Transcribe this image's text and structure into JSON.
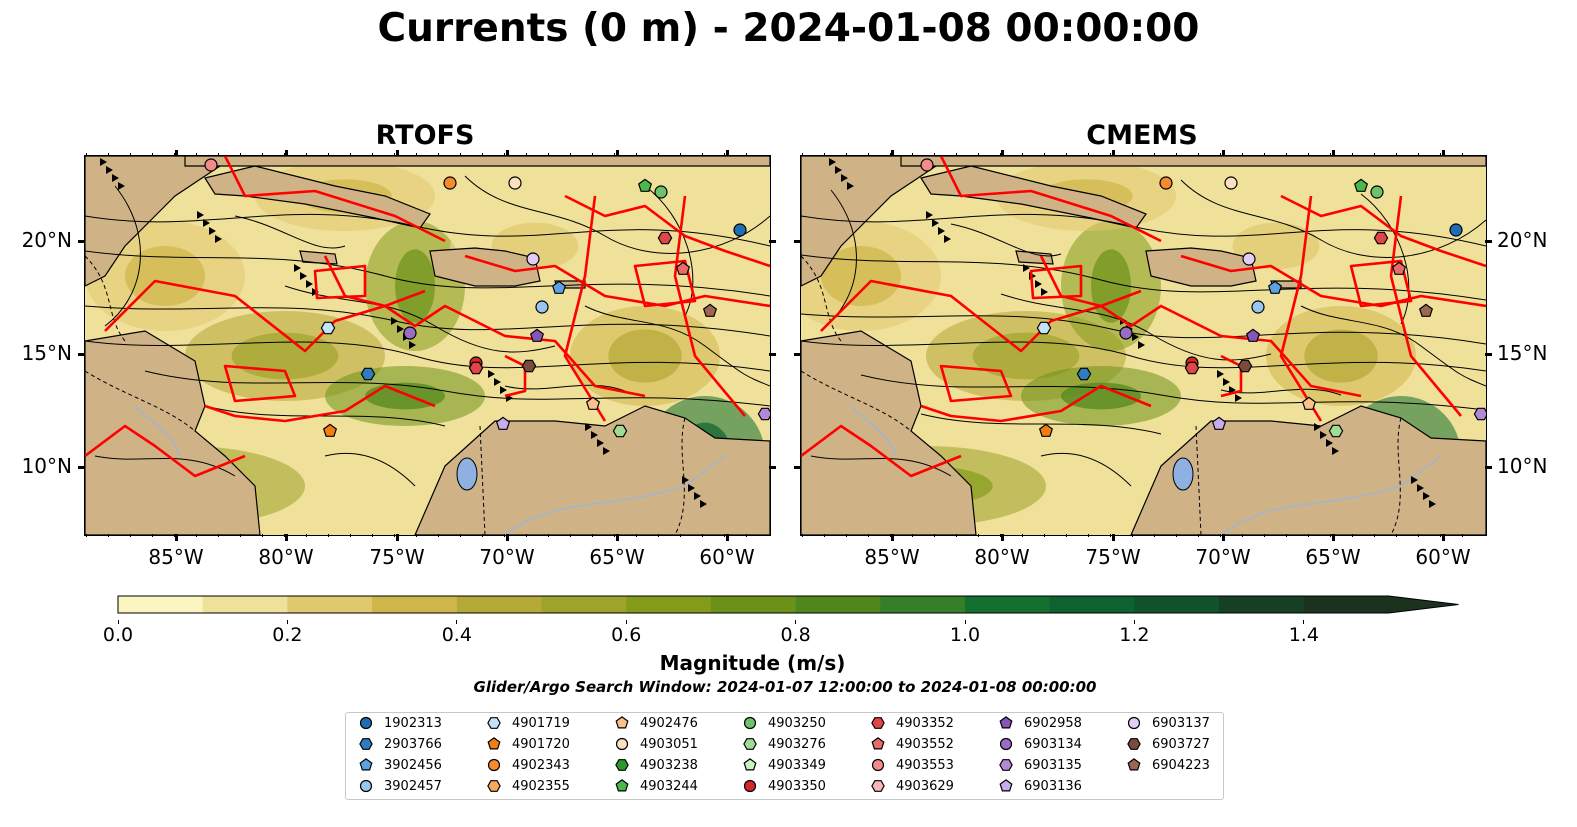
{
  "title": "Currents (0 m) - 2024-01-08 00:00:00",
  "panels": [
    {
      "title": "RTOFS"
    },
    {
      "title": "CMEMS"
    }
  ],
  "axes": {
    "lon_ticks": [
      "85°W",
      "80°W",
      "75°W",
      "70°W",
      "65°W",
      "60°W"
    ],
    "lat_ticks": [
      "20°N",
      "15°N",
      "10°N"
    ]
  },
  "colorbar": {
    "title": "Magnitude (m/s)",
    "ticks": [
      "0.0",
      "0.2",
      "0.4",
      "0.6",
      "0.8",
      "1.0",
      "1.2",
      "1.4"
    ],
    "range": [
      0.0,
      1.5
    ],
    "extend": "max",
    "colors": [
      "#fbf5c1",
      "#efe09a",
      "#e0c86d",
      "#cfb64a",
      "#b4a836",
      "#9ea32c",
      "#839b1b",
      "#6b9118",
      "#4f861d",
      "#357f27",
      "#13702f",
      "#0d6230",
      "#0f522c",
      "#173f24",
      "#1b321e"
    ]
  },
  "search_window": "Glider/Argo Search Window: 2024-01-07 12:00:00 to 2024-01-08 00:00:00",
  "legend": [
    {
      "id": "1902313",
      "marker": "circle",
      "color": "#1f6eb4"
    },
    {
      "id": "2903766",
      "marker": "hexagon",
      "color": "#2f7cc0"
    },
    {
      "id": "3902456",
      "marker": "pentagon",
      "color": "#5ba3e0"
    },
    {
      "id": "3902457",
      "marker": "circle",
      "color": "#98c6ef"
    },
    {
      "id": "4901719",
      "marker": "hexagon",
      "color": "#c4e3f8"
    },
    {
      "id": "4901720",
      "marker": "pentagon",
      "color": "#f07e14"
    },
    {
      "id": "4902343",
      "marker": "circle",
      "color": "#f58a2e"
    },
    {
      "id": "4902355",
      "marker": "hexagon",
      "color": "#f8a95c"
    },
    {
      "id": "4902476",
      "marker": "pentagon",
      "color": "#fbc08c"
    },
    {
      "id": "4903051",
      "marker": "circle",
      "color": "#fde0c2"
    },
    {
      "id": "4903238",
      "marker": "hexagon",
      "color": "#2b9a2b"
    },
    {
      "id": "4903244",
      "marker": "pentagon",
      "color": "#4cb84c"
    },
    {
      "id": "4903250",
      "marker": "circle",
      "color": "#6cc36c"
    },
    {
      "id": "4903276",
      "marker": "hexagon",
      "color": "#9fdc94"
    },
    {
      "id": "4903349",
      "marker": "pentagon",
      "color": "#c8f2c0"
    },
    {
      "id": "4903350",
      "marker": "circle",
      "color": "#d62728"
    },
    {
      "id": "4903352",
      "marker": "hexagon",
      "color": "#e04646"
    },
    {
      "id": "4903552",
      "marker": "pentagon",
      "color": "#e86a6a"
    },
    {
      "id": "4903553",
      "marker": "circle",
      "color": "#f28c8c"
    },
    {
      "id": "4903629",
      "marker": "hexagon",
      "color": "#f8b6b6"
    },
    {
      "id": "6902958",
      "marker": "pentagon",
      "color": "#8656b6"
    },
    {
      "id": "6903134",
      "marker": "circle",
      "color": "#9a6cc6"
    },
    {
      "id": "6903135",
      "marker": "hexagon",
      "color": "#b08ad4"
    },
    {
      "id": "6903136",
      "marker": "pentagon",
      "color": "#c8acec"
    },
    {
      "id": "6903137",
      "marker": "circle",
      "color": "#e2cdf6"
    },
    {
      "id": "6903727",
      "marker": "hexagon",
      "color": "#7a4a3c"
    },
    {
      "id": "6904223",
      "marker": "pentagon",
      "color": "#9c6652"
    }
  ],
  "map_colors": {
    "land": "#d0b287",
    "stream": "#000000",
    "boundary": "#ff0000",
    "lake": "#8fb1e2",
    "river": "#9ab6d6"
  }
}
